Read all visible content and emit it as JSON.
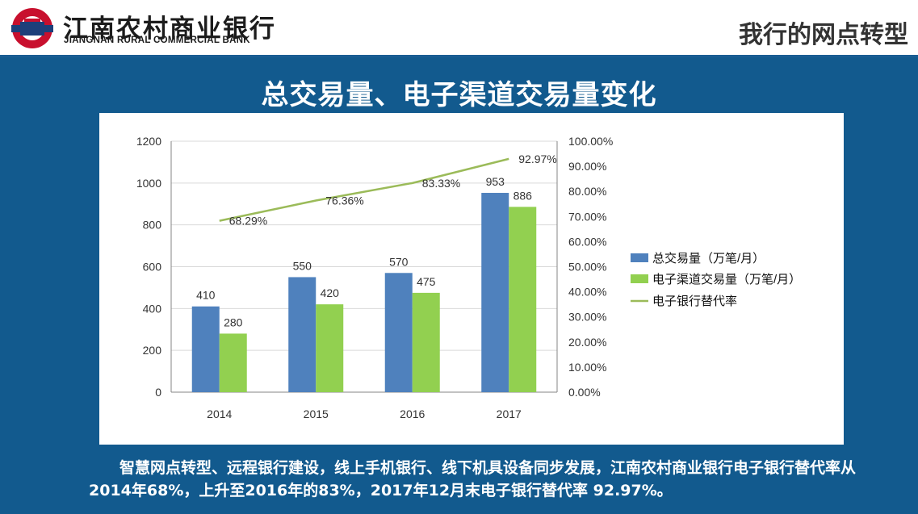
{
  "header": {
    "bank_name_cn": "江南农村商业银行",
    "bank_name_en": "JIANGNAN RURAL COMMERCIAL BANK",
    "section_title": "我行的网点转型",
    "logo_icon": "bank-logo-icon"
  },
  "page_title": "总交易量、电子渠道交易量变化",
  "caption": "智慧网点转型、远程银行建设，线上手机银行、线下机具设备同步发展，江南农村商业银行电子银行替代率从2014年68%，上升至2016年的83%，2017年12月末电子银行替代率 92.97%。",
  "colors": {
    "background": "#125a8e",
    "bar_total": "#4f81bd",
    "bar_electronic": "#92d050",
    "line_rate": "#9bbb59"
  },
  "chart_data": {
    "type": "bar",
    "categories": [
      "2014",
      "2015",
      "2016",
      "2017"
    ],
    "series": [
      {
        "name": "总交易量（万笔/月）",
        "kind": "bar",
        "axis": "left",
        "values": [
          410,
          550,
          570,
          953
        ],
        "labels": [
          "410",
          "550",
          "570",
          "953"
        ]
      },
      {
        "name": "电子渠道交易量（万笔/月）",
        "kind": "bar",
        "axis": "left",
        "values": [
          280,
          420,
          475,
          886
        ],
        "labels": [
          "280",
          "420",
          "475",
          "886"
        ]
      },
      {
        "name": "电子银行替代率",
        "kind": "line",
        "axis": "right",
        "values": [
          68.29,
          76.36,
          83.33,
          92.97
        ],
        "labels": [
          "68.29%",
          "76.36%",
          "83.33%",
          "92.97%"
        ]
      }
    ],
    "ylim_left": [
      0,
      1200
    ],
    "ylim_right": [
      0,
      100
    ],
    "yticks_left": [
      "0",
      "200",
      "400",
      "600",
      "800",
      "1000",
      "1200"
    ],
    "yticks_right": [
      "0.00%",
      "10.00%",
      "20.00%",
      "30.00%",
      "40.00%",
      "50.00%",
      "60.00%",
      "70.00%",
      "80.00%",
      "90.00%",
      "100.00%"
    ],
    "grid": true,
    "legend": "right"
  }
}
